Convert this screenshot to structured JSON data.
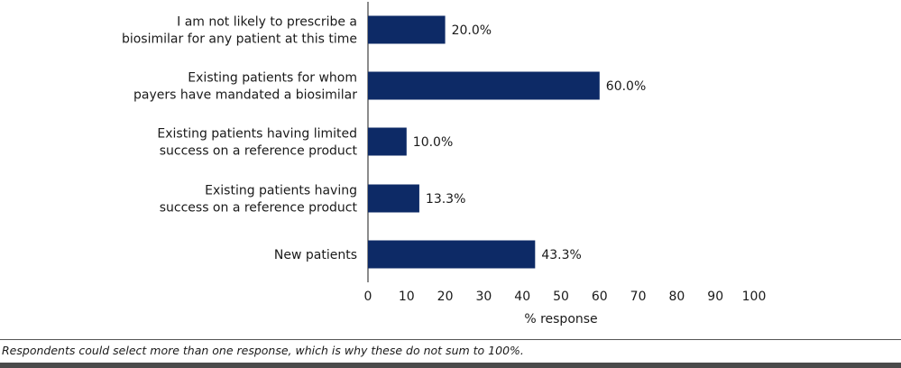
{
  "chart_data": {
    "type": "bar",
    "orientation": "horizontal",
    "categories": [
      [
        "I am not likely to prescribe a",
        "biosimilar for any patient at this time"
      ],
      [
        "Existing patients for whom",
        "payers have mandated a biosimilar"
      ],
      [
        "Existing patients having limited",
        "success on a reference product"
      ],
      [
        "Existing patients having",
        "success on a reference product"
      ],
      [
        "New patients"
      ]
    ],
    "values": [
      20.0,
      60.0,
      10.0,
      13.3,
      43.3
    ],
    "value_labels": [
      "20.0%",
      "60.0%",
      "10.0%",
      "13.3%",
      "43.3%"
    ],
    "xlabel": "% response",
    "xlim": [
      0,
      100
    ],
    "xticks": [
      0,
      10,
      20,
      30,
      40,
      50,
      60,
      70,
      80,
      90,
      100
    ],
    "grid": false,
    "bar_color": "#0d2a66"
  },
  "footnote": "Respondents could select more than one response, which is why these do not sum to 100%."
}
